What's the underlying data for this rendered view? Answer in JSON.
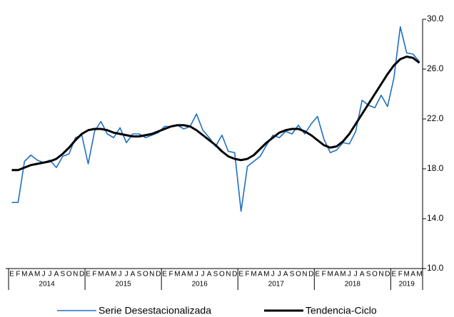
{
  "chart_data": {
    "type": "line",
    "categories": [
      "E",
      "F",
      "M",
      "A",
      "M",
      "J",
      "J",
      "A",
      "S",
      "O",
      "N",
      "D",
      "E",
      "F",
      "M",
      "A",
      "M",
      "J",
      "J",
      "A",
      "S",
      "O",
      "N",
      "D",
      "E",
      "F",
      "M",
      "A",
      "M",
      "J",
      "J",
      "A",
      "S",
      "O",
      "N",
      "D",
      "E",
      "F",
      "M",
      "A",
      "M",
      "J",
      "J",
      "A",
      "S",
      "O",
      "N",
      "D",
      "E",
      "F",
      "M",
      "A",
      "M",
      "J",
      "J",
      "A",
      "S",
      "O",
      "N",
      "D",
      "E",
      "F",
      "M",
      "A",
      "M"
    ],
    "years": [
      "2014",
      "2015",
      "2016",
      "2017",
      "2018",
      "2019"
    ],
    "series": [
      {
        "name": "Serie Desestacionalizada",
        "color": "#1f6fc0",
        "values": [
          15.3,
          15.3,
          18.6,
          19.1,
          18.7,
          18.5,
          18.7,
          18.1,
          19.0,
          19.2,
          20.5,
          20.7,
          18.4,
          21.0,
          21.8,
          20.8,
          20.5,
          21.3,
          20.1,
          20.8,
          20.8,
          20.5,
          20.7,
          20.9,
          21.4,
          21.4,
          21.5,
          21.2,
          21.4,
          22.4,
          21.1,
          20.5,
          19.8,
          20.7,
          19.4,
          19.3,
          14.6,
          18.2,
          18.6,
          19.0,
          19.9,
          20.7,
          20.5,
          21.0,
          20.8,
          21.5,
          20.8,
          21.6,
          22.2,
          20.4,
          19.3,
          19.5,
          20.1,
          20.0,
          21.0,
          23.5,
          23.1,
          22.9,
          23.9,
          23.0,
          25.3,
          29.4,
          27.3,
          27.2,
          26.6
        ]
      },
      {
        "name": "Tendencia-Ciclo",
        "color": "#000000",
        "values": [
          17.9,
          17.9,
          18.1,
          18.3,
          18.4,
          18.5,
          18.6,
          18.8,
          19.2,
          19.7,
          20.3,
          20.8,
          21.1,
          21.2,
          21.2,
          21.1,
          20.9,
          20.8,
          20.7,
          20.6,
          20.6,
          20.7,
          20.8,
          21.0,
          21.2,
          21.4,
          21.5,
          21.5,
          21.4,
          21.1,
          20.7,
          20.3,
          19.9,
          19.4,
          19.0,
          18.8,
          18.7,
          18.8,
          19.1,
          19.6,
          20.1,
          20.5,
          20.9,
          21.1,
          21.2,
          21.2,
          21.0,
          20.7,
          20.3,
          19.9,
          19.7,
          19.8,
          20.2,
          20.8,
          21.6,
          22.4,
          23.2,
          24.0,
          24.8,
          25.6,
          26.3,
          26.8,
          27.0,
          26.9,
          26.5
        ]
      }
    ],
    "ylim": [
      10,
      30
    ],
    "yticks": [
      {
        "value": 10,
        "label": "10.0"
      },
      {
        "value": 14,
        "label": "14.0"
      },
      {
        "value": 18,
        "label": "18.0"
      },
      {
        "value": 22,
        "label": "22.0"
      },
      {
        "value": 26,
        "label": "26.0"
      },
      {
        "value": 30,
        "label": "30.0"
      }
    ]
  }
}
